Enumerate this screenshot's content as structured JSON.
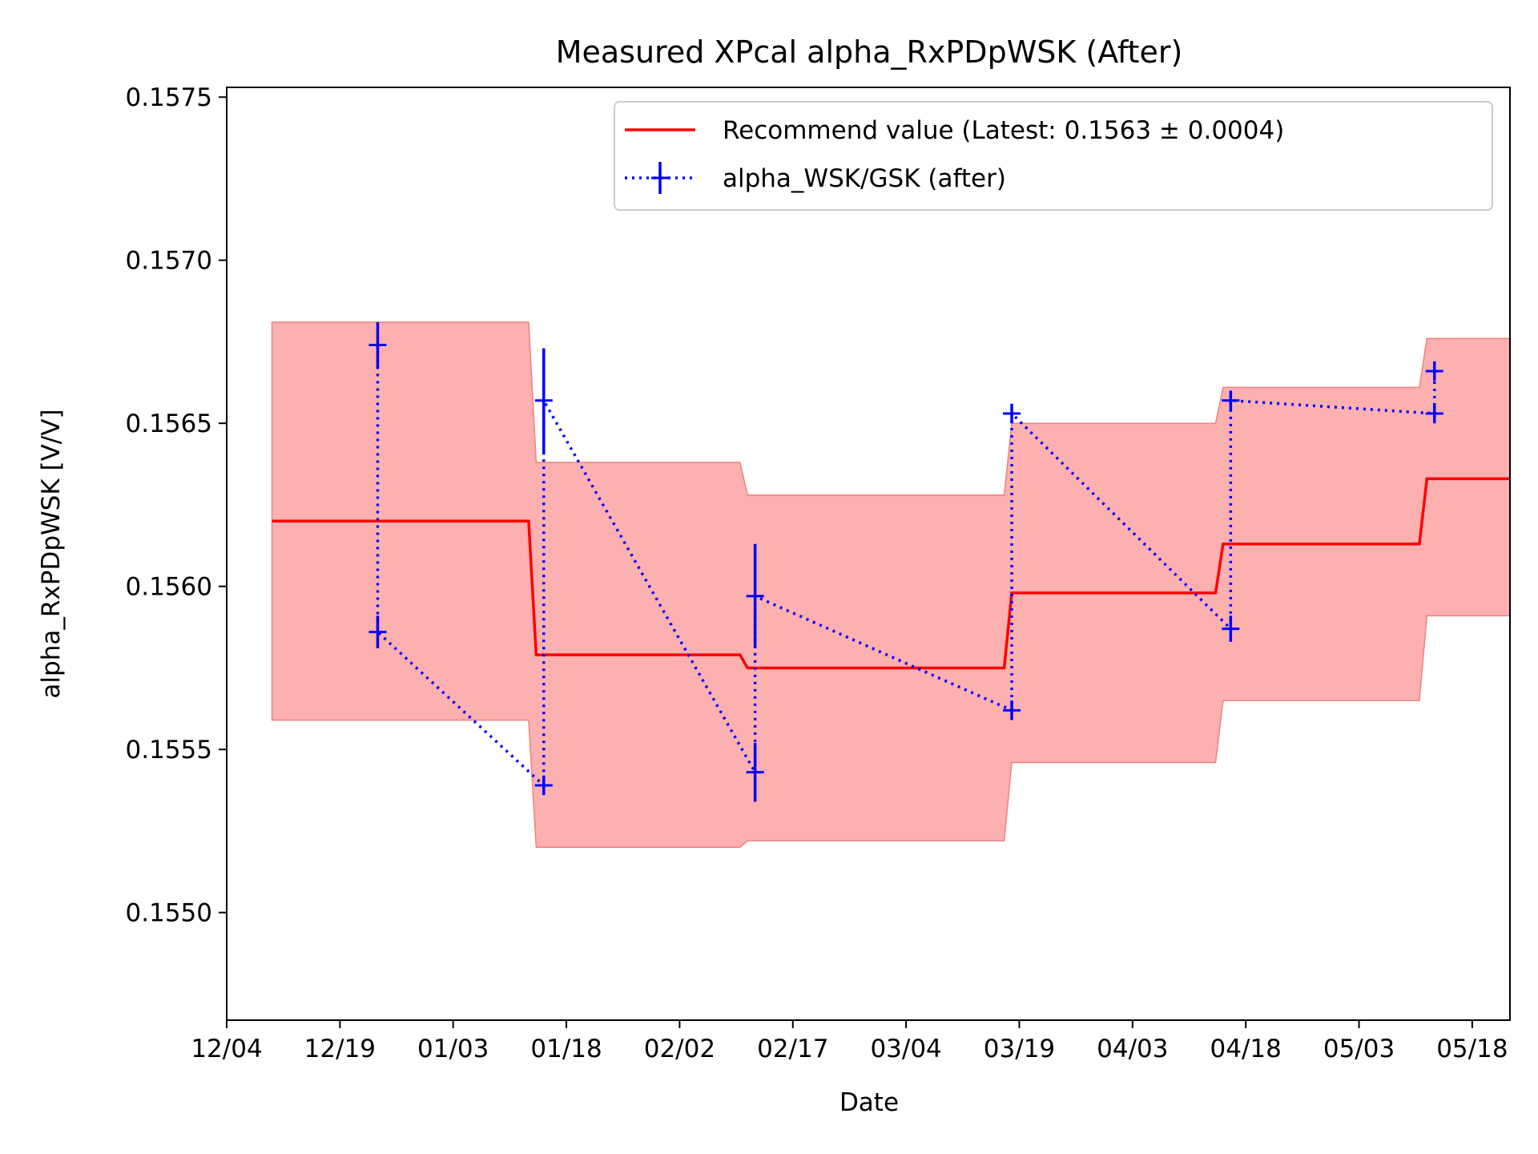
{
  "chart_data": {
    "type": "line",
    "title": "Measured XPcal alpha_RxPDpWSK (After)",
    "xlabel": "Date",
    "ylabel": "alpha_RxPDpWSK [V/V]",
    "xlim": [
      "2024-12-04",
      "2025-05-23"
    ],
    "ylim": [
      0.15467,
      0.15753
    ],
    "xticks": [
      "12/04",
      "12/19",
      "01/03",
      "01/18",
      "02/02",
      "02/17",
      "03/04",
      "03/19",
      "04/03",
      "04/18",
      "05/03",
      "05/18"
    ],
    "xtick_dates": [
      "2024-12-04",
      "2024-12-19",
      "2025-01-03",
      "2025-01-18",
      "2025-02-02",
      "2025-02-17",
      "2025-03-04",
      "2025-03-19",
      "2025-04-03",
      "2025-04-18",
      "2025-05-03",
      "2025-05-18"
    ],
    "yticks": [
      "0.1550",
      "0.1555",
      "0.1560",
      "0.1565",
      "0.1570",
      "0.1575"
    ],
    "ytick_values": [
      0.155,
      0.1555,
      0.156,
      0.1565,
      0.157,
      0.1575
    ],
    "grid": false,
    "legend_placement": "top-right",
    "legend": [
      "Recommend value (Latest: 0.1563 ± 0.0004)",
      "alpha_WSK/GSK (after)"
    ],
    "colors": {
      "recommend": "#ff0000",
      "band": "#fcb0b0",
      "band_edge": "#f08080",
      "measured": "#0000ff"
    },
    "series": [
      {
        "name": "Recommend value (Latest: 0.1563 ± 0.0004)",
        "style": "solid step with uncertainty band",
        "x": [
          "2024-12-10",
          "2025-01-13",
          "2025-01-14",
          "2025-02-10",
          "2025-02-11",
          "2025-03-17",
          "2025-03-18",
          "2025-04-14",
          "2025-04-15",
          "2025-05-11",
          "2025-05-12",
          "2025-05-23"
        ],
        "y": [
          0.1562,
          0.1562,
          0.15579,
          0.15579,
          0.15575,
          0.15575,
          0.15598,
          0.15598,
          0.15613,
          0.15613,
          0.15633,
          0.15633
        ],
        "band_lower": [
          0.15559,
          0.15559,
          0.1552,
          0.1552,
          0.15522,
          0.15522,
          0.15546,
          0.15546,
          0.15565,
          0.15565,
          0.15591,
          0.15591
        ],
        "band_upper": [
          0.15681,
          0.15681,
          0.15638,
          0.15638,
          0.15628,
          0.15628,
          0.1565,
          0.1565,
          0.15661,
          0.15661,
          0.15676,
          0.15676
        ]
      },
      {
        "name": "alpha_WSK/GSK (after)",
        "style": "dotted line with error bars",
        "x": [
          "2024-12-24",
          "2024-12-24",
          "2025-01-15",
          "2025-01-15",
          "2025-02-12",
          "2025-02-12",
          "2025-03-18",
          "2025-03-18",
          "2025-04-16",
          "2025-04-16",
          "2025-05-13",
          "2025-05-13"
        ],
        "y": [
          0.15674,
          0.15586,
          0.15539,
          0.15657,
          0.15543,
          0.15597,
          0.15562,
          0.15653,
          0.15587,
          0.15657,
          0.15653,
          0.15666
        ],
        "yerr": [
          7e-05,
          5e-05,
          3e-05,
          0.00016,
          9e-05,
          0.00016,
          3e-05,
          3e-05,
          4e-05,
          3e-05,
          3e-05,
          3e-05
        ]
      }
    ]
  }
}
